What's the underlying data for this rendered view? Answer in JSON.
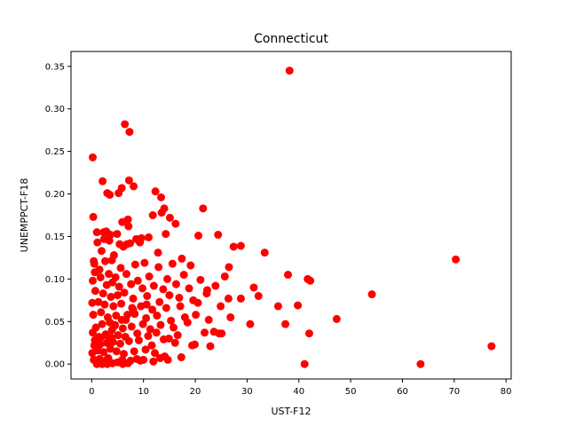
{
  "chart_data": {
    "type": "scatter",
    "title": "Connecticut",
    "xlabel": "UST-F12",
    "ylabel": "UNEMPPCT-F18",
    "xlim": [
      -4,
      81
    ],
    "ylim": [
      -0.0175,
      0.3675
    ],
    "x_ticks": [
      0,
      10,
      20,
      30,
      40,
      50,
      60,
      70,
      80
    ],
    "x_tick_labels": [
      "0",
      "10",
      "20",
      "30",
      "40",
      "50",
      "60",
      "70",
      "80"
    ],
    "y_ticks": [
      0.0,
      0.05,
      0.1,
      0.15,
      0.2,
      0.25,
      0.3,
      0.35
    ],
    "y_tick_labels": [
      "0.00",
      "0.05",
      "0.10",
      "0.15",
      "0.20",
      "0.25",
      "0.30",
      "0.35"
    ],
    "grid": false,
    "legend": "none",
    "marker_color": "#ff0000",
    "series": [
      {
        "x": [
          38.2,
          6.4,
          7.3,
          0.2,
          2.1,
          7.2,
          8.1,
          5.8,
          3.0,
          3.5,
          5.2,
          12.3,
          13.4,
          14.0,
          21.5,
          0.3,
          2.3,
          7.0,
          15.1,
          16.2,
          1.0,
          2.8,
          3.6,
          4.9,
          5.9,
          7.1,
          9.6,
          11.8,
          13.5,
          1.1,
          2.4,
          3.4,
          5.4,
          6.8,
          8.6,
          11.0,
          14.3,
          20.6,
          24.4,
          0.4,
          1.9,
          4.3,
          6.1,
          7.4,
          9.3,
          12.8,
          17.4,
          27.4,
          28.8,
          33.4,
          0.5,
          2.6,
          3.9,
          5.6,
          8.4,
          10.2,
          12.9,
          15.6,
          19.1,
          26.5,
          70.3,
          0.6,
          1.5,
          3.3,
          4.6,
          6.7,
          8.9,
          11.1,
          14.6,
          17.8,
          21.0,
          25.7,
          37.9,
          41.7,
          42.2,
          0.2,
          1.7,
          2.9,
          4.0,
          5.3,
          7.6,
          9.8,
          12.0,
          13.8,
          16.3,
          18.8,
          22.3,
          23.9,
          31.3,
          54.1,
          0.7,
          2.2,
          3.7,
          5.0,
          6.3,
          8.0,
          10.7,
          13.1,
          15.0,
          16.9,
          19.6,
          22.2,
          26.4,
          28.8,
          32.2,
          0.1,
          1.3,
          2.5,
          4.2,
          5.7,
          7.8,
          9.5,
          11.7,
          14.4,
          17.1,
          20.5,
          24.9,
          30.6,
          36.0,
          39.8,
          47.3,
          0.3,
          1.8,
          3.1,
          4.7,
          6.6,
          8.3,
          10.5,
          12.6,
          15.3,
          18.0,
          20.1,
          22.6,
          26.8,
          37.4,
          0.8,
          2.0,
          3.5,
          4.4,
          6.0,
          7.7,
          9.9,
          11.3,
          13.3,
          15.8,
          18.5,
          21.8,
          23.6,
          25.1,
          42.0,
          0.2,
          1.4,
          2.7,
          3.8,
          5.1,
          6.5,
          8.8,
          10.9,
          12.5,
          14.9,
          16.6,
          19.4,
          22.9,
          77.2,
          0.5,
          1.6,
          2.9,
          4.1,
          5.5,
          7.2,
          9.1,
          11.6,
          13.9,
          16.1,
          19.9,
          24.6,
          0.1,
          1.2,
          2.3,
          3.6,
          4.8,
          6.2,
          8.2,
          10.4,
          12.2,
          14.1,
          17.3,
          41.1,
          63.5,
          0.4,
          1.5,
          2.6,
          3.2,
          5.9,
          7.5,
          8.7,
          10.0,
          13.2,
          14.7,
          1.0,
          2.0,
          3.0,
          4.0,
          5.0,
          6.0,
          7.0,
          9.4,
          11.9,
          0.6,
          1.7,
          2.8,
          3.9,
          4.5,
          5.8,
          6.9,
          8.0,
          10.6
        ],
        "y": [
          0.345,
          0.282,
          0.273,
          0.243,
          0.215,
          0.216,
          0.209,
          0.207,
          0.201,
          0.199,
          0.201,
          0.203,
          0.196,
          0.183,
          0.183,
          0.173,
          0.155,
          0.17,
          0.172,
          0.165,
          0.155,
          0.156,
          0.152,
          0.153,
          0.167,
          0.162,
          0.148,
          0.175,
          0.178,
          0.143,
          0.147,
          0.145,
          0.141,
          0.141,
          0.147,
          0.149,
          0.153,
          0.151,
          0.152,
          0.121,
          0.133,
          0.128,
          0.138,
          0.142,
          0.143,
          0.131,
          0.124,
          0.138,
          0.139,
          0.131,
          0.118,
          0.121,
          0.122,
          0.113,
          0.117,
          0.119,
          0.114,
          0.118,
          0.116,
          0.114,
          0.123,
          0.108,
          0.111,
          0.106,
          0.102,
          0.106,
          0.098,
          0.103,
          0.1,
          0.105,
          0.099,
          0.103,
          0.105,
          0.1,
          0.098,
          0.098,
          0.102,
          0.093,
          0.096,
          0.091,
          0.094,
          0.089,
          0.092,
          0.088,
          0.094,
          0.089,
          0.087,
          0.092,
          0.09,
          0.082,
          0.086,
          0.083,
          0.079,
          0.081,
          0.084,
          0.077,
          0.08,
          0.073,
          0.081,
          0.078,
          0.075,
          0.083,
          0.077,
          0.077,
          0.08,
          0.072,
          0.073,
          0.07,
          0.068,
          0.071,
          0.066,
          0.068,
          0.064,
          0.066,
          0.068,
          0.072,
          0.068,
          0.047,
          0.068,
          0.069,
          0.053,
          0.058,
          0.061,
          0.055,
          0.057,
          0.052,
          0.059,
          0.054,
          0.057,
          0.051,
          0.055,
          0.058,
          0.052,
          0.055,
          0.047,
          0.043,
          0.047,
          0.049,
          0.045,
          0.042,
          0.044,
          0.047,
          0.041,
          0.046,
          0.043,
          0.049,
          0.037,
          0.038,
          0.036,
          0.036,
          0.037,
          0.032,
          0.035,
          0.031,
          0.034,
          0.032,
          0.036,
          0.033,
          0.037,
          0.03,
          0.034,
          0.022,
          0.021,
          0.021,
          0.022,
          0.023,
          0.025,
          0.026,
          0.024,
          0.027,
          0.028,
          0.022,
          0.029,
          0.025,
          0.023,
          0.036,
          0.013,
          0.016,
          0.014,
          0.018,
          0.015,
          0.012,
          0.015,
          0.017,
          0.013,
          0.009,
          0.008,
          0.0,
          0.0,
          0.005,
          0.006,
          0.004,
          0.007,
          0.005,
          0.004,
          0.006,
          0.005,
          0.007,
          0.005,
          0.0,
          0.0,
          0.0,
          0.001,
          0.002,
          0.0,
          0.001,
          0.004,
          0.003,
          0.028,
          0.031,
          0.034,
          0.04,
          0.046,
          0.052,
          0.058,
          0.064,
          0.07
        ]
      }
    ]
  }
}
